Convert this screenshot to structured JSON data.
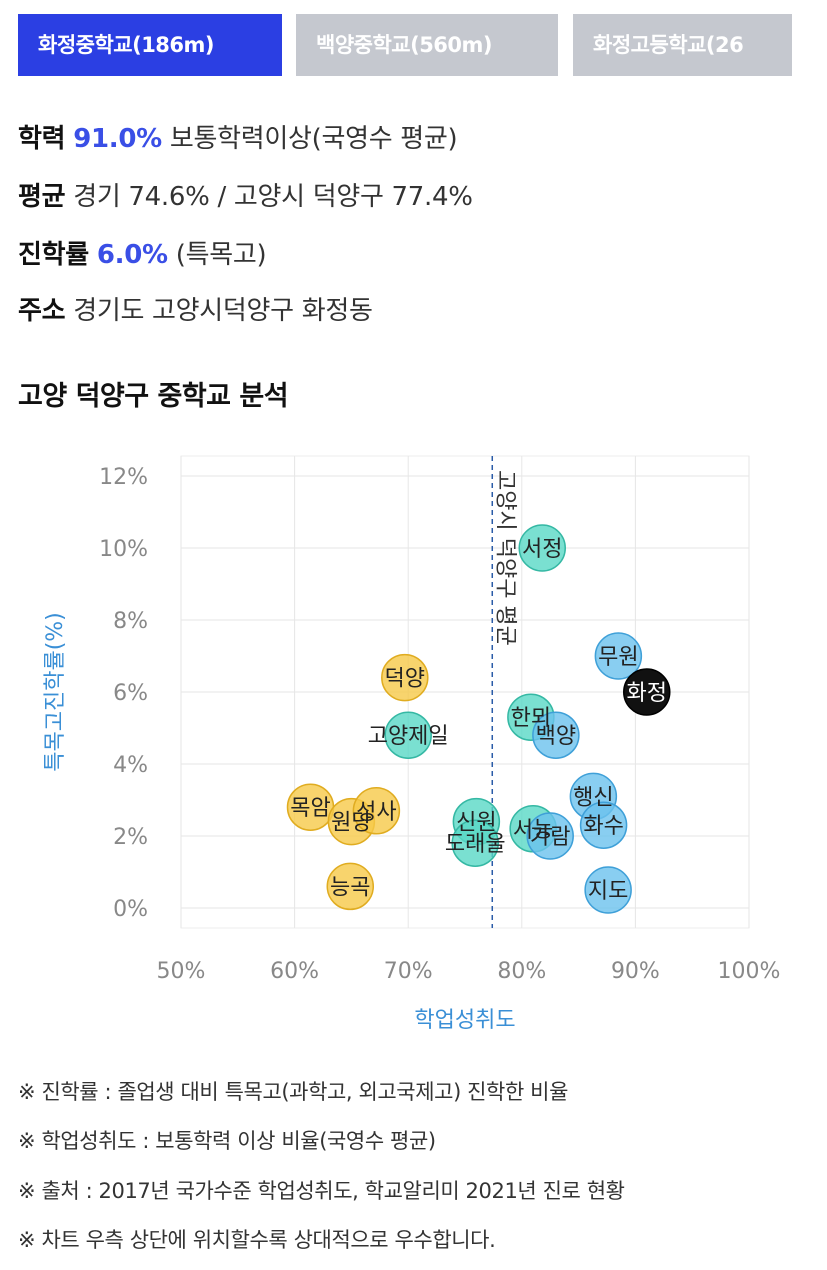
{
  "tabs": [
    {
      "label": "화정중학교(186m)"
    },
    {
      "label": "백양중학교(560m)"
    },
    {
      "label": "화정고등학교(26"
    }
  ],
  "info": {
    "achievement_label": "학력",
    "achievement_value": "91.0%",
    "achievement_desc": "보통학력이상(국영수 평균)",
    "average_label": "평균",
    "average_value": "경기 74.6% / 고양시 덕양구 77.4%",
    "rate_label": "진학률",
    "rate_value": "6.0%",
    "rate_desc": "(특목고)",
    "address_label": "주소",
    "address_value": "경기도 고양시덕양구 화정동"
  },
  "section_title": "고양 덕양구 중학교 분석",
  "colors": {
    "accent": "#2b3fe3",
    "tab_inactive": "#c5c8cf",
    "yellow": "#f6c949",
    "teal": "#59d8c6",
    "blue": "#6cc2ee",
    "highlight": "#111111",
    "axis_label": "#3a8fd6"
  },
  "chart_data": {
    "type": "scatter",
    "xlabel": "학업성취도",
    "ylabel": "특목고진학률(%)",
    "xlim": [
      50,
      100
    ],
    "ylim": [
      0,
      12
    ],
    "xticks": [
      "50%",
      "60%",
      "70%",
      "80%",
      "90%",
      "100%"
    ],
    "yticks": [
      "0%",
      "2%",
      "4%",
      "6%",
      "8%",
      "10%",
      "12%"
    ],
    "grid": true,
    "reference_line": {
      "x": 77.4,
      "label": "고양시 덕양구 평균"
    },
    "points": [
      {
        "name": "덕양",
        "x": 69.7,
        "y": 6.4,
        "color": "yellow"
      },
      {
        "name": "목암",
        "x": 61.4,
        "y": 2.8,
        "color": "yellow"
      },
      {
        "name": "원당",
        "x": 65.0,
        "y": 2.4,
        "color": "yellow"
      },
      {
        "name": "성사",
        "x": 67.2,
        "y": 2.7,
        "color": "yellow"
      },
      {
        "name": "능곡",
        "x": 64.9,
        "y": 0.6,
        "color": "yellow"
      },
      {
        "name": "고양제일",
        "x": 70.0,
        "y": 4.8,
        "color": "teal"
      },
      {
        "name": "서정",
        "x": 81.8,
        "y": 10.0,
        "color": "teal"
      },
      {
        "name": "신원",
        "x": 76.0,
        "y": 2.4,
        "color": "teal"
      },
      {
        "name": "도래울",
        "x": 75.9,
        "y": 1.8,
        "color": "teal"
      },
      {
        "name": "한뫼",
        "x": 80.8,
        "y": 5.3,
        "color": "teal"
      },
      {
        "name": "서능",
        "x": 81.0,
        "y": 2.2,
        "color": "teal"
      },
      {
        "name": "백양",
        "x": 83.0,
        "y": 4.8,
        "color": "blue"
      },
      {
        "name": "무원",
        "x": 88.5,
        "y": 7.0,
        "color": "blue"
      },
      {
        "name": "화정",
        "x": 91.0,
        "y": 6.0,
        "color": "highlight"
      },
      {
        "name": "행신",
        "x": 86.3,
        "y": 3.1,
        "color": "blue"
      },
      {
        "name": "화수",
        "x": 87.2,
        "y": 2.3,
        "color": "blue"
      },
      {
        "name": "가람",
        "x": 82.5,
        "y": 2.0,
        "color": "blue"
      },
      {
        "name": "지도",
        "x": 87.6,
        "y": 0.5,
        "color": "blue"
      }
    ]
  },
  "notes": [
    "※ 진학률 : 졸업생 대비 특목고(과학고, 외고국제고) 진학한 비율",
    "※ 학업성취도 : 보통학력 이상 비율(국영수 평균)",
    "※ 출처 : 2017년 국가수준 학업성취도, 학교알리미 2021년 진로 현황",
    "※ 차트 우측 상단에 위치할수록 상대적으로 우수합니다."
  ]
}
